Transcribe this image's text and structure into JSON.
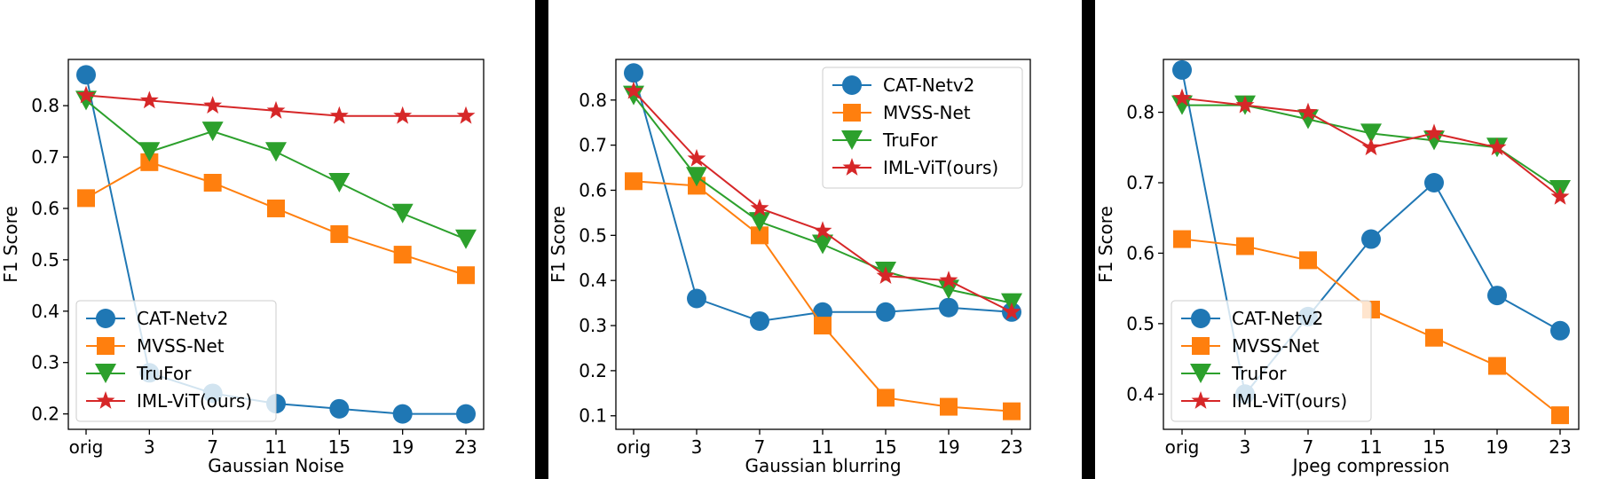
{
  "colors": {
    "CAT-Netv2": "#1f77b4",
    "MVSS-Net": "#ff7f0e",
    "TruFor": "#2ca02c",
    "IML-ViT(ours)": "#d62728",
    "divider": "#000000"
  },
  "markers": {
    "CAT-Netv2": "circle",
    "MVSS-Net": "square",
    "TruFor": "triangle-down",
    "IML-ViT(ours)": "star"
  },
  "chart_data": [
    {
      "type": "line",
      "title": "",
      "xlabel": "Gaussian Noise",
      "ylabel": "F1 Score",
      "categories": [
        "orig",
        "3",
        "7",
        "11",
        "15",
        "19",
        "23"
      ],
      "ylim": [
        0.17,
        0.89
      ],
      "yticks": [
        "0.2",
        "0.3",
        "0.4",
        "0.5",
        "0.6",
        "0.7",
        "0.8"
      ],
      "legend": "lower-left",
      "grid": false,
      "series": [
        {
          "name": "CAT-Netv2",
          "values": [
            0.86,
            0.28,
            0.24,
            0.22,
            0.21,
            0.2,
            0.2
          ]
        },
        {
          "name": "MVSS-Net",
          "values": [
            0.62,
            0.69,
            0.65,
            0.6,
            0.55,
            0.51,
            0.47
          ]
        },
        {
          "name": "TruFor",
          "values": [
            0.81,
            0.71,
            0.75,
            0.71,
            0.65,
            0.59,
            0.54
          ]
        },
        {
          "name": "IML-ViT(ours)",
          "values": [
            0.82,
            0.81,
            0.8,
            0.79,
            0.78,
            0.78,
            0.78
          ]
        }
      ]
    },
    {
      "type": "line",
      "title": "",
      "xlabel": "Gaussian blurring",
      "ylabel": "F1 Score",
      "categories": [
        "orig",
        "3",
        "7",
        "11",
        "15",
        "19",
        "23"
      ],
      "ylim": [
        0.07,
        0.89
      ],
      "yticks": [
        "0.1",
        "0.2",
        "0.3",
        "0.4",
        "0.5",
        "0.6",
        "0.7",
        "0.8"
      ],
      "legend": "upper-right",
      "grid": false,
      "series": [
        {
          "name": "CAT-Netv2",
          "values": [
            0.86,
            0.36,
            0.31,
            0.33,
            0.33,
            0.34,
            0.33
          ]
        },
        {
          "name": "MVSS-Net",
          "values": [
            0.62,
            0.61,
            0.5,
            0.3,
            0.14,
            0.12,
            0.11
          ]
        },
        {
          "name": "TruFor",
          "values": [
            0.81,
            0.63,
            0.53,
            0.48,
            0.42,
            0.38,
            0.35
          ]
        },
        {
          "name": "IML-ViT(ours)",
          "values": [
            0.82,
            0.67,
            0.56,
            0.51,
            0.41,
            0.4,
            0.33
          ]
        }
      ]
    },
    {
      "type": "line",
      "title": "",
      "xlabel": "Jpeg compression",
      "ylabel": "F1 Score",
      "categories": [
        "orig",
        "3",
        "7",
        "11",
        "15",
        "19",
        "23"
      ],
      "ylim": [
        0.35,
        0.875
      ],
      "yticks": [
        "0.4",
        "0.5",
        "0.6",
        "0.7",
        "0.8"
      ],
      "legend": "lower-left",
      "grid": false,
      "series": [
        {
          "name": "CAT-Netv2",
          "values": [
            0.86,
            0.4,
            0.51,
            0.62,
            0.7,
            0.54,
            0.49
          ]
        },
        {
          "name": "MVSS-Net",
          "values": [
            0.62,
            0.61,
            0.59,
            0.52,
            0.48,
            0.44,
            0.37
          ]
        },
        {
          "name": "TruFor",
          "values": [
            0.81,
            0.81,
            0.79,
            0.77,
            0.76,
            0.75,
            0.69
          ]
        },
        {
          "name": "IML-ViT(ours)",
          "values": [
            0.82,
            0.81,
            0.8,
            0.75,
            0.77,
            0.75,
            0.68
          ]
        }
      ]
    }
  ]
}
